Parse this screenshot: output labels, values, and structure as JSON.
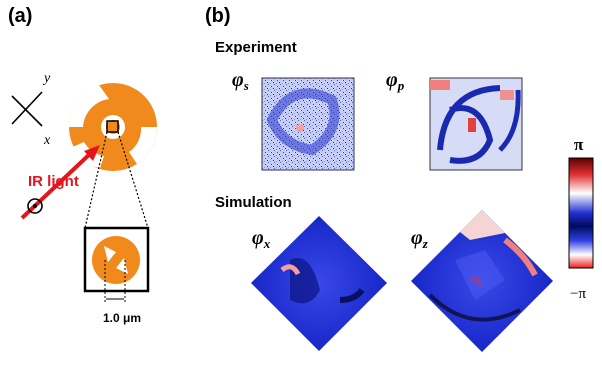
{
  "panel_a": {
    "label": "(a)",
    "axis_y": "y",
    "axis_x": "x",
    "beam": "IR light",
    "scale_bar": "1.0 μm"
  },
  "panel_b": {
    "label": "(b)",
    "experiment": {
      "title": "Experiment",
      "maps": [
        {
          "symbol": "φ",
          "subscript": "s"
        },
        {
          "symbol": "φ",
          "subscript": "p"
        }
      ]
    },
    "simulation": {
      "title": "Simulation",
      "maps": [
        {
          "symbol": "φ",
          "subscript": "x"
        },
        {
          "symbol": "φ",
          "subscript": "z"
        }
      ]
    },
    "colorbar": {
      "max_label": "π",
      "min_label": "−π"
    }
  }
}
